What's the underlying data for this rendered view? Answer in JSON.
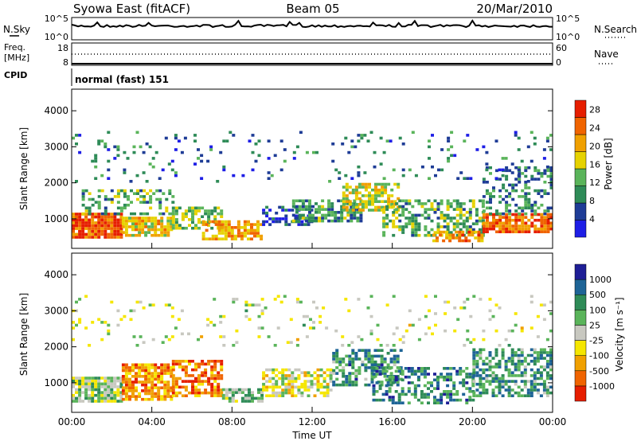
{
  "header": {
    "station": "Syowa East (fitACF)",
    "beam": "Beam 05",
    "date": "20/Mar/2010"
  },
  "panels": {
    "nsky": {
      "left_label": "N.Sky",
      "right_label": "N.Search",
      "left_ticks": [
        "10^5",
        "10^0"
      ],
      "right_ticks": [
        "10^5",
        "10^0"
      ]
    },
    "freq": {
      "left_label_1": "Freq.",
      "left_label_2": "[MHz]",
      "right_label": "Nave",
      "left_ticks": [
        "18",
        "8"
      ],
      "right_ticks": [
        "60",
        "0"
      ]
    },
    "cpid": {
      "label": "CPID",
      "mode": "normal (fast) 151"
    },
    "power": {
      "ylabel": "Slant Range [km]",
      "colorbar_label": "Power [dB]"
    },
    "velocity": {
      "ylabel": "Slant Range [km]",
      "colorbar_label": "Velocity [m s⁻¹]"
    }
  },
  "xlabel": "Time UT",
  "colors": {
    "power_scale": [
      "#1e1ee6",
      "#1e3c96",
      "#2e8b57",
      "#5ab45a",
      "#e6d200",
      "#f0a000",
      "#f06400",
      "#e61e00"
    ],
    "velocity_scale": [
      "#e61e00",
      "#f06400",
      "#f0a000",
      "#f5e600",
      "#c8c8c0",
      "#5ab45a",
      "#2e8b57",
      "#1e6496",
      "#1e1e96"
    ]
  },
  "chart_data": [
    {
      "type": "heatmap",
      "title": "Power",
      "xlabel": "Time UT",
      "ylabel": "Slant Range [km]",
      "x_ticks": [
        "00:00",
        "04:00",
        "08:00",
        "12:00",
        "16:00",
        "20:00",
        "00:00"
      ],
      "y_ticks": [
        1000,
        2000,
        3000,
        4000
      ],
      "xlim_hours": [
        0,
        24
      ],
      "ylim_km": [
        180,
        4600
      ],
      "colorbar": {
        "label": "Power [dB]",
        "ticks": [
          4,
          8,
          12,
          16,
          20,
          24,
          28
        ],
        "range": [
          0,
          30
        ]
      },
      "regions": [
        {
          "t0": 0.0,
          "t1": 2.5,
          "r0": 450,
          "r1": 1100,
          "level": 0.85,
          "density": 0.9
        },
        {
          "t0": 2.5,
          "t1": 5.0,
          "r0": 500,
          "r1": 1000,
          "level": 0.6,
          "density": 0.8
        },
        {
          "t0": 0.5,
          "t1": 5.0,
          "r0": 1100,
          "r1": 1800,
          "level": 0.4,
          "density": 0.4
        },
        {
          "t0": 5.0,
          "t1": 7.5,
          "r0": 700,
          "r1": 1300,
          "level": 0.45,
          "density": 0.6
        },
        {
          "t0": 6.5,
          "t1": 9.5,
          "r0": 400,
          "r1": 900,
          "level": 0.7,
          "density": 0.75
        },
        {
          "t0": 9.5,
          "t1": 12.0,
          "r0": 800,
          "r1": 1300,
          "level": 0.15,
          "density": 0.55
        },
        {
          "t0": 11.0,
          "t1": 14.5,
          "r0": 900,
          "r1": 1500,
          "level": 0.35,
          "density": 0.7
        },
        {
          "t0": 13.5,
          "t1": 16.5,
          "r0": 1200,
          "r1": 2000,
          "level": 0.55,
          "density": 0.6
        },
        {
          "t0": 15.5,
          "t1": 20.5,
          "r0": 500,
          "r1": 1500,
          "level": 0.4,
          "density": 0.5
        },
        {
          "t0": 18.0,
          "t1": 20.5,
          "r0": 350,
          "r1": 600,
          "level": 0.75,
          "density": 0.7
        },
        {
          "t0": 20.5,
          "t1": 24.0,
          "r0": 600,
          "r1": 1100,
          "level": 0.8,
          "density": 0.8
        },
        {
          "t0": 20.5,
          "t1": 24.0,
          "r0": 1100,
          "r1": 2400,
          "level": 0.3,
          "density": 0.4
        },
        {
          "t0": 0.0,
          "t1": 24.0,
          "r0": 2000,
          "r1": 3400,
          "level": 0.25,
          "density": 0.08
        }
      ]
    },
    {
      "type": "heatmap",
      "title": "Velocity",
      "xlabel": "Time UT",
      "ylabel": "Slant Range [km]",
      "x_ticks": [
        "00:00",
        "04:00",
        "08:00",
        "12:00",
        "16:00",
        "20:00",
        "00:00"
      ],
      "y_ticks": [
        1000,
        2000,
        3000,
        4000
      ],
      "xlim_hours": [
        0,
        24
      ],
      "ylim_km": [
        180,
        4600
      ],
      "colorbar": {
        "label": "Velocity [m s⁻¹]",
        "ticks": [
          1000,
          500,
          100,
          25,
          -25,
          -100,
          -500,
          -1000
        ],
        "range": [
          -1200,
          1200
        ]
      },
      "regions": [
        {
          "t0": 0.0,
          "t1": 2.5,
          "r0": 450,
          "r1": 1100,
          "level": 0.55,
          "density": 0.9
        },
        {
          "t0": 2.5,
          "t1": 5.0,
          "r0": 500,
          "r1": 1500,
          "level": 0.25,
          "density": 0.75
        },
        {
          "t0": 5.0,
          "t1": 7.5,
          "r0": 600,
          "r1": 1600,
          "level": 0.2,
          "density": 0.65
        },
        {
          "t0": 7.5,
          "t1": 9.5,
          "r0": 450,
          "r1": 850,
          "level": 0.6,
          "density": 0.8
        },
        {
          "t0": 9.5,
          "t1": 13.0,
          "r0": 600,
          "r1": 1400,
          "level": 0.47,
          "density": 0.6
        },
        {
          "t0": 13.0,
          "t1": 16.5,
          "r0": 900,
          "r1": 1900,
          "level": 0.72,
          "density": 0.55
        },
        {
          "t0": 15.0,
          "t1": 20.0,
          "r0": 400,
          "r1": 1400,
          "level": 0.75,
          "density": 0.45
        },
        {
          "t0": 20.0,
          "t1": 24.0,
          "r0": 600,
          "r1": 1900,
          "level": 0.7,
          "density": 0.6
        },
        {
          "t0": 0.0,
          "t1": 24.0,
          "r0": 2000,
          "r1": 3400,
          "level": 0.5,
          "density": 0.07
        }
      ]
    }
  ]
}
